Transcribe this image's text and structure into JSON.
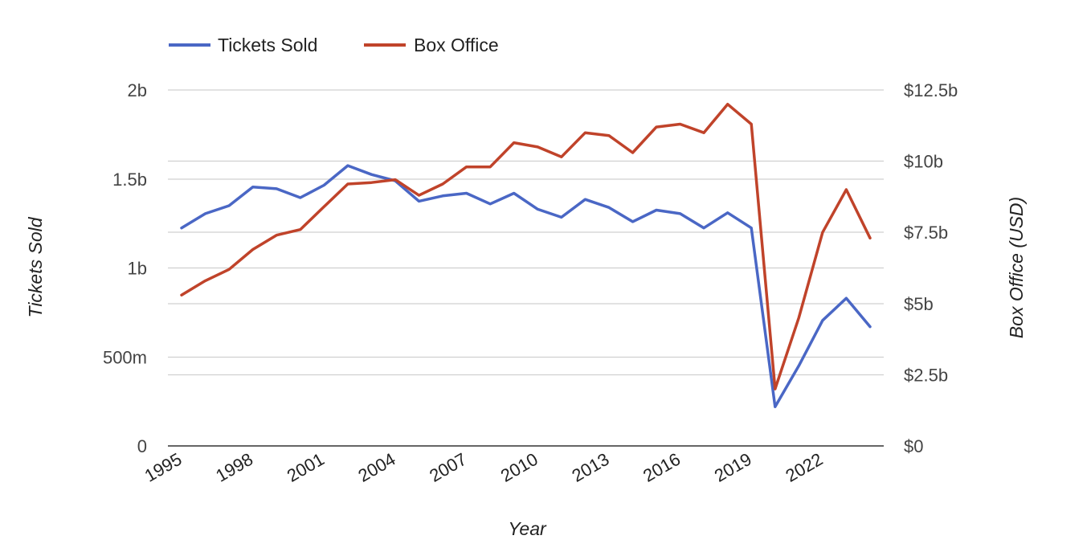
{
  "chart_data": {
    "type": "line",
    "xlabel": "Year",
    "ylabel_left": "Tickets Sold",
    "ylabel_right": "Box Office (USD)",
    "legend_position": "top-left",
    "x": [
      1995,
      1996,
      1997,
      1998,
      1999,
      2000,
      2001,
      2002,
      2003,
      2004,
      2005,
      2006,
      2007,
      2008,
      2009,
      2010,
      2011,
      2012,
      2013,
      2014,
      2015,
      2016,
      2017,
      2018,
      2019,
      2020,
      2021,
      2022,
      2023,
      2024
    ],
    "x_ticks": [
      "1995",
      "1998",
      "2001",
      "2004",
      "2007",
      "2010",
      "2013",
      "2016",
      "2019",
      "2022"
    ],
    "left_axis": {
      "ylim": [
        0,
        2000000000
      ],
      "ticks": [
        0,
        500000000,
        1000000000,
        1500000000,
        2000000000
      ],
      "tick_labels": [
        "0",
        "500m",
        "1b",
        "1.5b",
        "2b"
      ]
    },
    "right_axis": {
      "ylim": [
        0,
        12500000000
      ],
      "ticks": [
        0,
        2500000000,
        5000000000,
        7500000000,
        10000000000,
        12500000000
      ],
      "tick_labels": [
        "$0",
        "$2.5b",
        "$5b",
        "$7.5b",
        "$10b",
        "$12.5b"
      ]
    },
    "grid": true,
    "series": [
      {
        "name": "Tickets Sold",
        "axis": "left",
        "color": "#4a67c5",
        "values": [
          1225000000,
          1305000000,
          1350000000,
          1455000000,
          1445000000,
          1395000000,
          1465000000,
          1575000000,
          1525000000,
          1490000000,
          1375000000,
          1405000000,
          1420000000,
          1360000000,
          1420000000,
          1330000000,
          1285000000,
          1385000000,
          1340000000,
          1260000000,
          1325000000,
          1305000000,
          1225000000,
          1310000000,
          1225000000,
          220000000,
          450000000,
          705000000,
          830000000,
          670000000
        ]
      },
      {
        "name": "Box Office",
        "axis": "right",
        "color": "#c0432a",
        "values": [
          5300000000,
          5800000000,
          6200000000,
          6900000000,
          7400000000,
          7600000000,
          8400000000,
          9200000000,
          9250000000,
          9350000000,
          8800000000,
          9200000000,
          9800000000,
          9800000000,
          10650000000,
          10500000000,
          10150000000,
          11000000000,
          10900000000,
          10300000000,
          11200000000,
          11300000000,
          11000000000,
          12000000000,
          11300000000,
          2000000000,
          4500000000,
          7500000000,
          9000000000,
          7300000000
        ]
      }
    ]
  }
}
